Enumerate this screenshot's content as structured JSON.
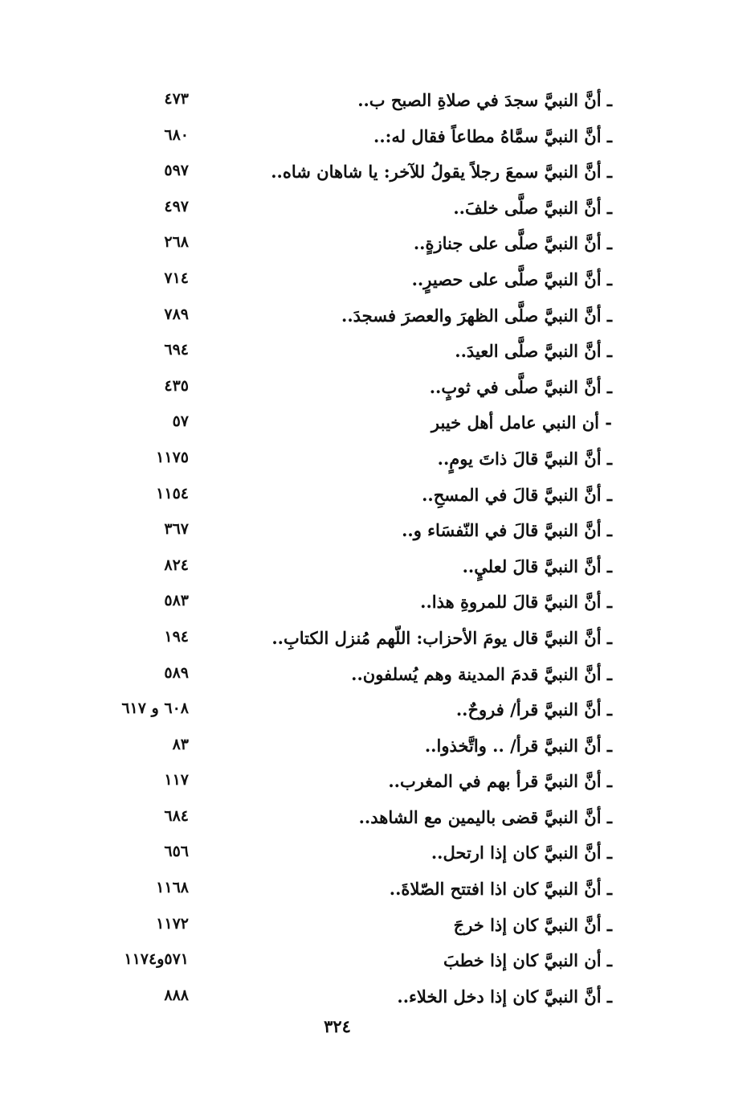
{
  "entries": [
    {
      "text": "ـ أنَّ النبيَّ سجدَ في صلاةِ الصبح ب..",
      "page": "٤٧٣"
    },
    {
      "text": "ـ أنَّ النبيَّ سمَّاهُ مطاعاً فقال له:..",
      "page": "٦٨٠"
    },
    {
      "text": "ـ أنَّ النبيَّ سمعَ رجلاً يقولُ للآخر: يا شاهان شاه..",
      "page": "٥٩٧"
    },
    {
      "text": "ـ أنَّ النبيَّ صلَّى خلفَ..",
      "page": "٤٩٧"
    },
    {
      "text": "ـ أنَّ النبيَّ صلَّى على جنازةٍ..",
      "page": "٢٦٨"
    },
    {
      "text": "ـ أنَّ النبيَّ صلَّى على حصيرٍ..",
      "page": "٧١٤"
    },
    {
      "text": "ـ أنَّ النبيَّ صلَّى الظهرَ والعصرَ فسجدَ..",
      "page": "٧٨٩"
    },
    {
      "text": "ـ أنَّ النبيَّ صلَّى العيدَ..",
      "page": "٦٩٤"
    },
    {
      "text": "ـ أنَّ النبيَّ صلَّى في ثوبٍ..",
      "page": "٤٣٥"
    },
    {
      "text": "- أن النبي عامل أهل خيبر",
      "page": "٥٧"
    },
    {
      "text": "ـ أنَّ النبيَّ قالَ ذاتَ يومٍ..",
      "page": "١١٧٥"
    },
    {
      "text": "ـ أنَّ النبيَّ قالَ في المسحِ..",
      "page": "١١٥٤"
    },
    {
      "text": "ـ أنَّ النبيَّ قالَ في النّفسَاء و..",
      "page": "٣٦٧"
    },
    {
      "text": "ـ أنَّ النبيَّ قالَ لعليٍ..",
      "page": "٨٢٤"
    },
    {
      "text": "ـ أنَّ النبيَّ قالَ للمروةِ هذا..",
      "page": "٥٨٣"
    },
    {
      "text": "ـ أنَّ النبيَّ قال يومَ الأحزاب: اللّهم مُنزل الكتابِ..",
      "page": "١٩٤"
    },
    {
      "text": "ـ أنَّ النبيَّ قدمَ المدينة وهم يُسلفون..",
      "page": "٥٨٩"
    },
    {
      "text": "ـ أنَّ النبيَّ قرأ/ فروحٌ..",
      "page": "٦٠٨ و ٦١٧"
    },
    {
      "text": "ـ أنَّ النبيَّ قرأ/ .. واتَّخذوا..",
      "page": "٨٣"
    },
    {
      "text": "ـ أنَّ النبيَّ قرأ بهم في المغرب..",
      "page": "١١٧"
    },
    {
      "text": "ـ أنَّ النبيَّ قضى باليمين مع الشاهد..",
      "page": "٦٨٤"
    },
    {
      "text": "ـ أنَّ النبيَّ كان إذا ارتحل..",
      "page": "٦٥٦"
    },
    {
      "text": "ـ أنَّ النبيَّ كان اذا افتتح الصّلاةَ..",
      "page": "١١٦٨"
    },
    {
      "text": "ـ أنَّ النبيَّ كان إذا خرجَ",
      "page": "١١٧٢"
    },
    {
      "text": "ـ أن النبيَّ كان إذا خطبَ",
      "page": "٥٧١و١١٧٤"
    },
    {
      "text": "ـ أنَّ النبيَّ كان إذا دخل الخلاء..",
      "page": "٨٨٨"
    }
  ],
  "folio": "٣٢٤"
}
